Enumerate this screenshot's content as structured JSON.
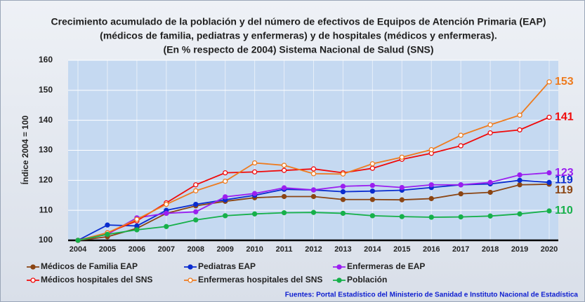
{
  "chart_data": {
    "type": "line",
    "title": [
      "Crecimiento acumulado de la población y del número de efectivos de Equipos de Atención Primaria (EAP)",
      "(médicos de familia, pediatras y enfermeras) y de hospitales (médicos y enfermeras).",
      "(En % respecto de 2004) Sistema Nacional de Salud (SNS)"
    ],
    "ylabel": "Índice 2004 = 100",
    "source": "Fuentes:  Portal Estadístico del Ministerio de Sanidad e Instituto Nacional de Estadística",
    "categories": [
      "2004",
      "2005",
      "2006",
      "2007",
      "2008",
      "2009",
      "2010",
      "2011",
      "2012",
      "2013",
      "2014",
      "2015",
      "2016",
      "2017",
      "2018",
      "2019",
      "2020"
    ],
    "ylim": [
      100,
      160
    ],
    "yticks": [
      100,
      110,
      120,
      130,
      140,
      150,
      160
    ],
    "grid": true,
    "legend": "bottom",
    "series": [
      {
        "name": "Médicos de Familia EAP",
        "color": "#8b4513",
        "hollow": false,
        "values": [
          100,
          101.2,
          104,
          109,
          111.5,
          113,
          114.2,
          114.6,
          114.6,
          113.6,
          113.6,
          113.5,
          113.9,
          115.5,
          116,
          118.5,
          118.7
        ],
        "value_labels": [
          null,
          null,
          null,
          null,
          null,
          null,
          null,
          null,
          null,
          null,
          null,
          null,
          null,
          null,
          null,
          null,
          "119"
        ]
      },
      {
        "name": "Pediatras EAP",
        "color": "#0a2ccf",
        "hollow": false,
        "values": [
          100,
          105.1,
          104.8,
          110,
          112,
          113.5,
          115,
          117,
          116.8,
          116.2,
          116.4,
          116.7,
          117.6,
          118.5,
          118.8,
          120,
          119.3
        ],
        "value_labels": [
          null,
          null,
          null,
          null,
          null,
          null,
          null,
          null,
          null,
          null,
          null,
          null,
          null,
          null,
          null,
          null,
          "119"
        ]
      },
      {
        "name": "Enfermeras de EAP",
        "color": "#9b1ff0",
        "hollow": false,
        "values": [
          100,
          102,
          107.5,
          109,
          109.5,
          114.5,
          115.6,
          117.5,
          116.8,
          118,
          118.3,
          117.6,
          118.5,
          118.5,
          119.3,
          121.8,
          122.5
        ],
        "value_labels": [
          null,
          null,
          null,
          null,
          null,
          null,
          null,
          null,
          null,
          null,
          null,
          null,
          null,
          null,
          null,
          null,
          "123"
        ]
      },
      {
        "name": "Médicos hospitales del SNS",
        "color": "#f00a0a",
        "hollow": true,
        "values": [
          100,
          102.5,
          106.5,
          112.5,
          118.5,
          122.5,
          122.8,
          123.3,
          123.8,
          122.5,
          124,
          127,
          129,
          131.5,
          135.8,
          136.8,
          141
        ],
        "value_labels": [
          null,
          null,
          null,
          null,
          null,
          null,
          null,
          null,
          null,
          null,
          null,
          null,
          null,
          null,
          null,
          null,
          "141"
        ]
      },
      {
        "name": "Enfermeras hospitales del SNS",
        "color": "#ee7b1e",
        "hollow": true,
        "values": [
          100,
          102.5,
          107,
          112,
          116.5,
          119.7,
          125.8,
          125,
          122.2,
          122.1,
          125.5,
          127.7,
          130.2,
          135,
          138.5,
          141.7,
          152.8
        ],
        "value_labels": [
          null,
          null,
          null,
          null,
          null,
          null,
          null,
          null,
          null,
          null,
          null,
          null,
          null,
          null,
          null,
          null,
          "153"
        ]
      },
      {
        "name": "Población",
        "color": "#16b04a",
        "hollow": false,
        "values": [
          100,
          102,
          103.5,
          104.6,
          106.8,
          108.2,
          108.8,
          109.2,
          109.3,
          109,
          108.2,
          107.9,
          107.7,
          107.8,
          108.1,
          108.8,
          109.8
        ],
        "value_labels": [
          null,
          null,
          null,
          null,
          null,
          null,
          null,
          null,
          null,
          null,
          null,
          null,
          null,
          null,
          null,
          null,
          "110"
        ]
      }
    ]
  }
}
